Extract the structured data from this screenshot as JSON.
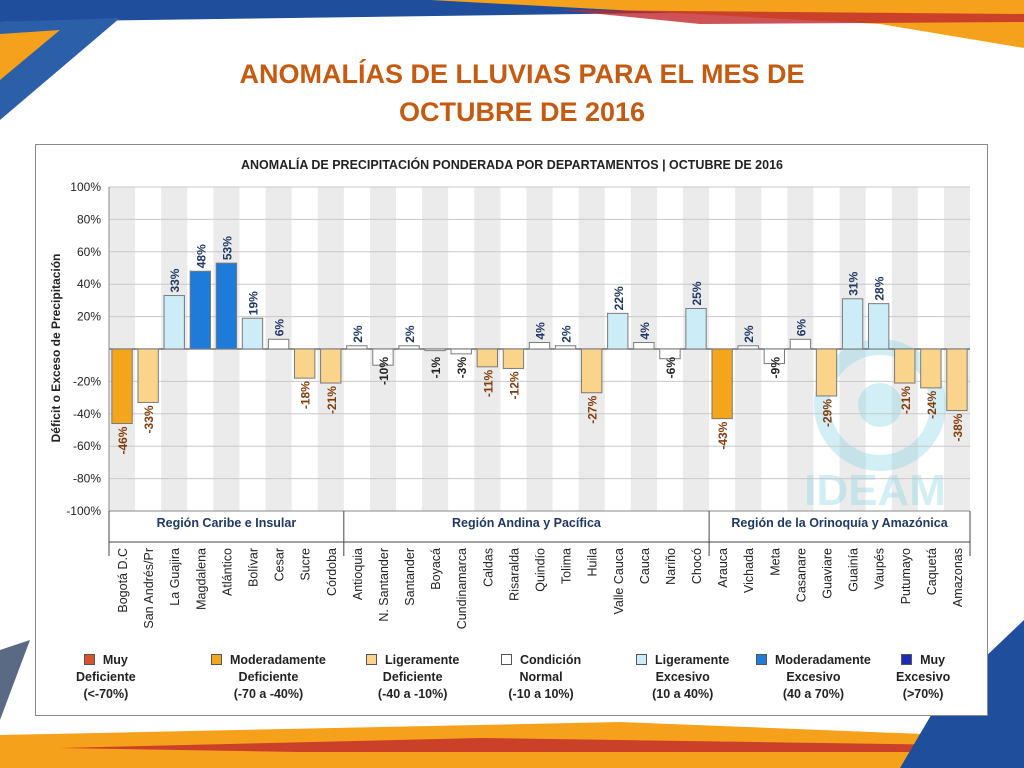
{
  "slide": {
    "title_line1": "ANOMALÍAS DE LLUVIAS PARA EL MES DE",
    "title_line2": "OCTUBRE DE 2016"
  },
  "colors": {
    "muy_deficiente": "#d9532a",
    "moderadamente_deficiente": "#f3a51c",
    "ligeramente_deficiente": "#fbd48c",
    "condicion_normal": "#ffffff",
    "ligeramente_excesivo": "#ccecf8",
    "moderadamente_excesivo": "#1f7bd9",
    "muy_excesivo": "#1c2bb7",
    "positive_label": "#1f3864",
    "negative_label": "#833c0b"
  },
  "chart_data": {
    "type": "bar",
    "title": "ANOMALÍA DE PRECIPITACIÓN PONDERADA POR DEPARTAMENTOS | OCTUBRE DE 2016",
    "xlabel": "",
    "ylabel": "Déficit o Exceso de Precipitación",
    "ylim": [
      -100,
      100
    ],
    "yticks": [
      "100%",
      "80%",
      "60%",
      "40%",
      "20%",
      "",
      "-20%",
      "-40%",
      "-60%",
      "-80%",
      "-100%"
    ],
    "grid": true,
    "categories": [
      "Bogotá D.C",
      "San Andrés/Pr",
      "La Guajira",
      "Magdalena",
      "Atlántico",
      "Bolívar",
      "Cesar",
      "Sucre",
      "Córdoba",
      "Antioquia",
      "N. Santander",
      "Santander",
      "Boyacá",
      "Cundinamarca",
      "Caldas",
      "Risaralda",
      "Quindío",
      "Tolima",
      "Huila",
      "Valle Cauca",
      "Cauca",
      "Nariño",
      "Chocó",
      "Arauca",
      "Vichada",
      "Meta",
      "Casanare",
      "Guaviare",
      "Guainía",
      "Vaupés",
      "Putumayo",
      "Caquetá",
      "Amazonas"
    ],
    "values": [
      -46,
      -33,
      33,
      48,
      53,
      19,
      6,
      -18,
      -21,
      2,
      -10,
      2,
      -1,
      -3,
      -11,
      -12,
      4,
      2,
      -27,
      22,
      4,
      -6,
      25,
      -43,
      2,
      -9,
      6,
      -29,
      31,
      28,
      -21,
      -24,
      -38
    ],
    "data_labels": [
      "-46%",
      "-33%",
      "33%",
      "48%",
      "53%",
      "19%",
      "6%",
      "-18%",
      "-21%",
      "2%",
      "-10%",
      "2%",
      "-1%",
      "-3%",
      "-11%",
      "-12%",
      "4%",
      "2%",
      "-27%",
      "22%",
      "4%",
      "-6%",
      "25%",
      "-43%",
      "2%",
      "-9%",
      "6%",
      "-29%",
      "31%",
      "28%",
      "-21%",
      "-24%",
      "-38%"
    ],
    "regions": [
      {
        "label": "Región Caribe e Insular",
        "start": 0,
        "end": 8
      },
      {
        "label": "Región Andina  y Pacífica",
        "start": 9,
        "end": 22
      },
      {
        "label": "Región de la Orinoquía y Amazónica",
        "start": 23,
        "end": 32
      }
    ],
    "legend": [
      {
        "lines": [
          "Muy",
          "Deficiente",
          "(<-70%)"
        ],
        "color": "#d9532a"
      },
      {
        "lines": [
          "Moderadamente",
          "Deficiente",
          "(-70 a -40%)"
        ],
        "color": "#f3a51c"
      },
      {
        "lines": [
          "Ligeramente",
          "Deficiente",
          "(-40 a -10%)"
        ],
        "color": "#fbd48c"
      },
      {
        "lines": [
          "Condición",
          "Normal",
          "(-10 a 10%)"
        ],
        "color": "#ffffff"
      },
      {
        "lines": [
          "Ligeramente",
          "Excesivo",
          "(10 a 40%)"
        ],
        "color": "#ccecf8"
      },
      {
        "lines": [
          "Moderadamente",
          "Excesivo",
          "(40 a 70%)"
        ],
        "color": "#1f7bd9"
      },
      {
        "lines": [
          "Muy",
          "Excesivo",
          "(>70%)"
        ],
        "color": "#1c2bb7"
      }
    ],
    "legend_placement": "bottom",
    "watermark_text": "IDEAM"
  }
}
